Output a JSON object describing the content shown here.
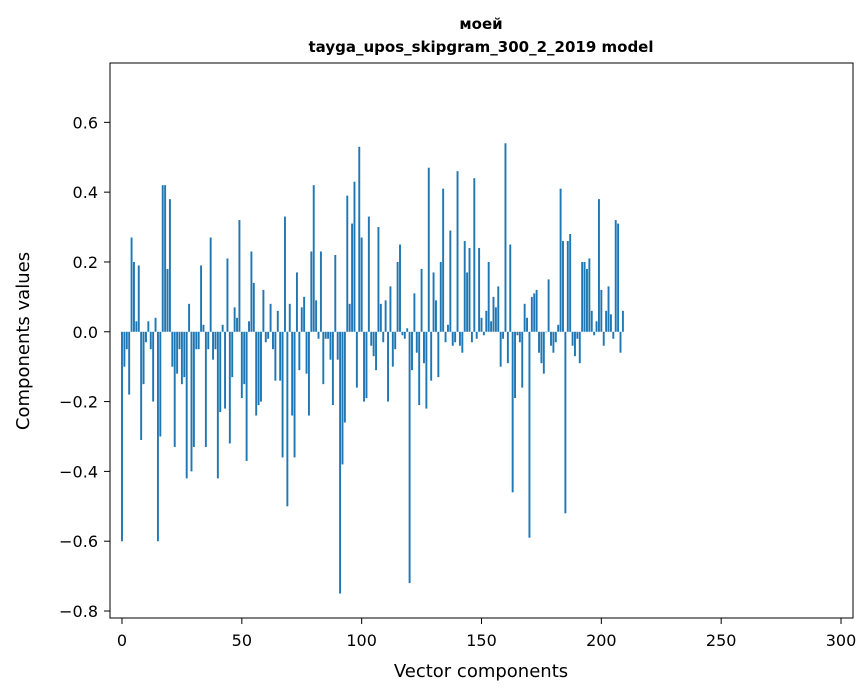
{
  "chart_data": {
    "type": "bar",
    "title_line1": "моей",
    "title_line2": "tayga_upos_skipgram_300_2_2019 model",
    "xlabel": "Vector components",
    "ylabel": "Components values",
    "xlim": [
      -5,
      305
    ],
    "ylim": [
      -0.82,
      0.77
    ],
    "xticks": [
      0,
      50,
      100,
      150,
      200,
      250,
      300
    ],
    "xtick_labels": [
      "0",
      "50",
      "100",
      "150",
      "200",
      "250",
      "300"
    ],
    "yticks": [
      -0.8,
      -0.6,
      -0.4,
      -0.2,
      0.0,
      0.2,
      0.4,
      0.6
    ],
    "ytick_labels": [
      "−0.8",
      "−0.6",
      "−0.4",
      "−0.2",
      "0.0",
      "0.2",
      "0.4",
      "0.6"
    ],
    "grid": false,
    "bar_color": "#1f77b4",
    "values": [
      -0.6,
      -0.1,
      -0.05,
      -0.18,
      0.27,
      0.2,
      0.03,
      0.19,
      -0.31,
      -0.15,
      -0.03,
      0.03,
      -0.05,
      -0.2,
      0.04,
      -0.6,
      -0.3,
      0.42,
      0.42,
      0.18,
      0.38,
      -0.1,
      -0.33,
      -0.12,
      -0.05,
      -0.15,
      -0.13,
      -0.42,
      0.08,
      -0.4,
      -0.33,
      -0.05,
      -0.05,
      0.19,
      0.02,
      -0.33,
      -0.05,
      0.27,
      -0.08,
      -0.05,
      -0.42,
      -0.23,
      0.02,
      -0.22,
      0.21,
      -0.32,
      -0.13,
      0.07,
      0.04,
      0.32,
      -0.19,
      -0.15,
      -0.37,
      0.03,
      0.23,
      0.14,
      -0.24,
      -0.21,
      -0.2,
      0.12,
      -0.03,
      -0.02,
      0.08,
      -0.05,
      -0.14,
      0.06,
      -0.14,
      -0.36,
      0.33,
      -0.5,
      0.08,
      -0.24,
      -0.36,
      0.17,
      -0.11,
      0.07,
      0.1,
      -0.12,
      -0.24,
      0.23,
      0.42,
      0.09,
      -0.02,
      0.23,
      -0.15,
      -0.02,
      -0.02,
      -0.08,
      -0.21,
      0.22,
      -0.08,
      -0.75,
      -0.38,
      -0.26,
      0.39,
      0.08,
      0.31,
      0.43,
      -0.16,
      0.53,
      0.27,
      -0.2,
      -0.19,
      0.33,
      -0.04,
      -0.07,
      -0.11,
      0.3,
      0.08,
      -0.03,
      0.09,
      -0.2,
      0.13,
      -0.1,
      -0.05,
      0.2,
      0.25,
      -0.01,
      -0.02,
      0.01,
      -0.72,
      -0.11,
      0.11,
      -0.06,
      -0.21,
      0.18,
      -0.09,
      -0.22,
      0.47,
      -0.14,
      0.17,
      0.09,
      -0.13,
      0.2,
      0.41,
      -0.03,
      0.02,
      0.29,
      -0.04,
      -0.03,
      0.46,
      -0.04,
      -0.06,
      0.26,
      0.17,
      0.24,
      -0.03,
      0.44,
      -0.02,
      0.24,
      0.04,
      -0.01,
      0.06,
      0.2,
      0.03,
      0.1,
      0.07,
      0.13,
      -0.1,
      -0.02,
      0.54,
      -0.09,
      0.25,
      -0.46,
      -0.19,
      -0.01,
      -0.03,
      -0.16,
      0.08,
      0.04,
      -0.59,
      0.1,
      0.11,
      0.12,
      -0.06,
      -0.09,
      -0.12,
      0.0,
      0.15,
      -0.04,
      -0.06,
      -0.03,
      0.02,
      0.41,
      0.26,
      -0.52,
      0.26,
      0.28,
      -0.04,
      -0.07,
      -0.02,
      -0.09,
      0.2,
      0.2,
      0.18,
      0.21,
      0.06,
      -0.01,
      0.03,
      0.38,
      0.12,
      -0.04,
      0.06,
      0.13,
      0.05,
      -0.02,
      0.32,
      0.31,
      -0.06,
      0.06
    ]
  }
}
